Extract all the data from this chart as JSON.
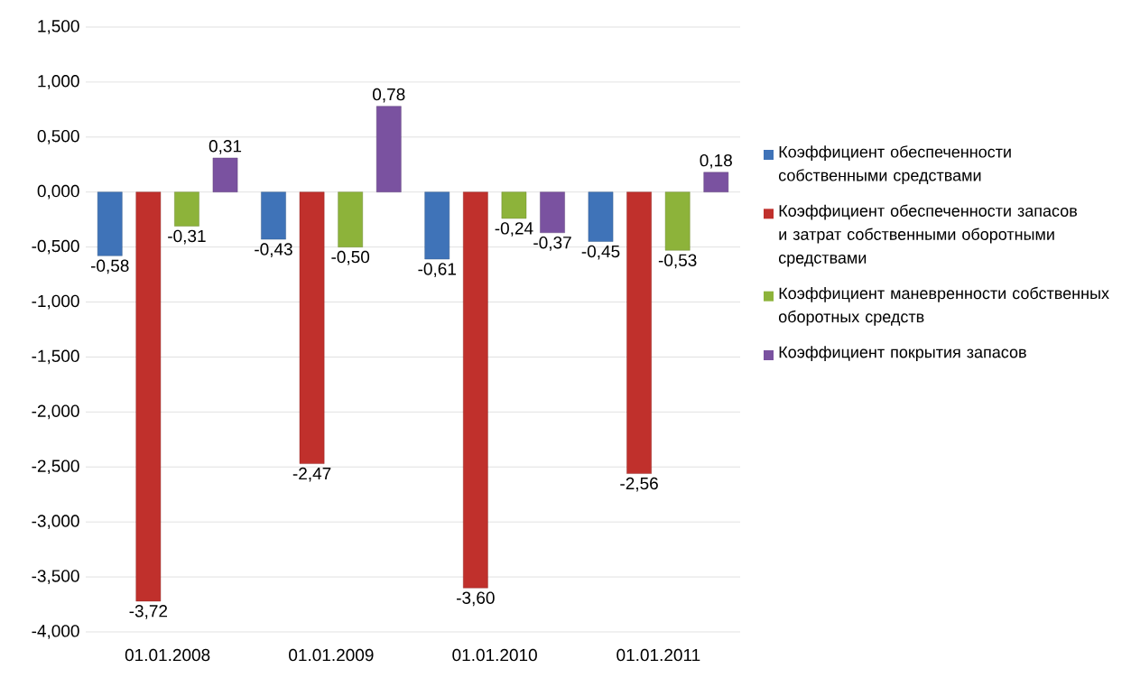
{
  "chart_data": {
    "type": "bar",
    "categories": [
      "01.01.2008",
      "01.01.2009",
      "01.01.2010",
      "01.01.2011"
    ],
    "series": [
      {
        "name": "Коэффициент обеспеченности собственными средствами",
        "color": "#3f73b8",
        "values": [
          -0.58,
          -0.43,
          -0.61,
          -0.45
        ],
        "value_labels": [
          "-0,58",
          "-0,43",
          "-0,61",
          "-0,45"
        ]
      },
      {
        "name": "Коэффициент обеспеченности запасов и затрат собственными оборотными средствами",
        "color": "#c0302c",
        "values": [
          -3.72,
          -2.47,
          -3.6,
          -2.56
        ],
        "value_labels": [
          "-3,72",
          "-2,47",
          "-3,60",
          "-2,56"
        ]
      },
      {
        "name": "Коэффициент маневренности собственных оборотных средств",
        "color": "#8db33a",
        "values": [
          -0.31,
          -0.5,
          -0.24,
          -0.53
        ],
        "value_labels": [
          "-0,31",
          "-0,50",
          "-0,24",
          "-0,53"
        ]
      },
      {
        "name": "Коэффициент покрытия запасов",
        "color": "#7a52a0",
        "values": [
          0.31,
          0.78,
          -0.37,
          0.18
        ],
        "value_labels": [
          "0,31",
          "0,78",
          "-0,37",
          "0,18"
        ]
      }
    ],
    "ylim": [
      -4,
      1.5
    ],
    "yticks": [
      {
        "value": -4,
        "label": "-4,000"
      },
      {
        "value": -3.5,
        "label": "-3,500"
      },
      {
        "value": -3,
        "label": "-3,000"
      },
      {
        "value": -2.5,
        "label": "-2,500"
      },
      {
        "value": -2,
        "label": "-2,000"
      },
      {
        "value": -1.5,
        "label": "-1,500"
      },
      {
        "value": -1,
        "label": "-1,000"
      },
      {
        "value": -0.5,
        "label": "-0,500"
      },
      {
        "value": 0,
        "label": "0,000"
      },
      {
        "value": 0.5,
        "label": "0,500"
      },
      {
        "value": 1,
        "label": "1,000"
      },
      {
        "value": 1.5,
        "label": "1,500"
      }
    ],
    "grid": "y",
    "legend": "right"
  }
}
